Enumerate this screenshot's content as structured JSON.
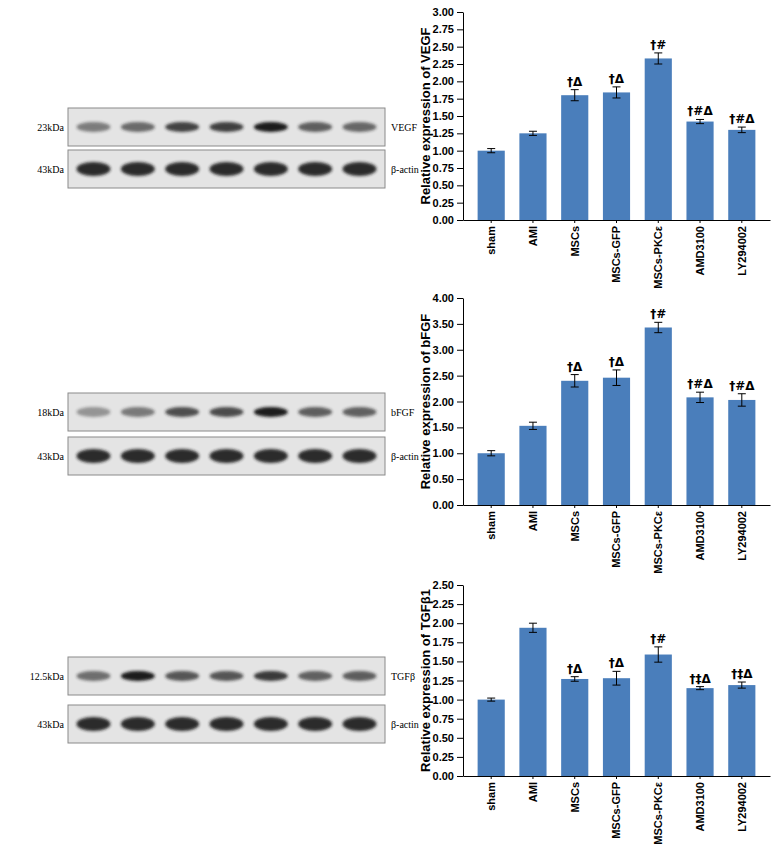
{
  "chart_data": [
    {
      "type": "bar",
      "y_label": "Relative expression of VEGF",
      "categories": [
        "sham",
        "AMI",
        "MSCs",
        "MSCs-GFP",
        "MSCs-PKCε",
        "AMD3100",
        "LY294002"
      ],
      "values": [
        1.0,
        1.25,
        1.8,
        1.84,
        2.33,
        1.42,
        1.3
      ],
      "error": [
        0.03,
        0.03,
        0.08,
        0.08,
        0.08,
        0.03,
        0.04
      ],
      "annotations": [
        null,
        null,
        "†Δ",
        "†Δ",
        "†#",
        "†#Δ",
        "†#Δ"
      ],
      "color": "#4a7ebb",
      "grid": false,
      "ylim": [
        0,
        3
      ],
      "yticks": [
        {
          "value": 0,
          "label": "0.00"
        },
        {
          "value": 0.25,
          "label": "0.25"
        },
        {
          "value": 0.5,
          "label": "0.50"
        },
        {
          "value": 0.75,
          "label": "0.75"
        },
        {
          "value": 1,
          "label": "1.00"
        },
        {
          "value": 1.25,
          "label": "1.25"
        },
        {
          "value": 1.5,
          "label": "1.50"
        },
        {
          "value": 1.75,
          "label": "1.75"
        },
        {
          "value": 2,
          "label": "2.00"
        },
        {
          "value": 2.25,
          "label": "2.25"
        },
        {
          "value": 2.5,
          "label": "2.50"
        },
        {
          "value": 2.75,
          "label": "2.75"
        },
        {
          "value": 3,
          "label": "3.00"
        }
      ]
    },
    {
      "type": "bar",
      "y_label": "Relative expression of bFGF",
      "categories": [
        "sham",
        "AMI",
        "MSCs",
        "MSCs-GFP",
        "MSCs-PKCε",
        "AMD3100",
        "LY294002"
      ],
      "values": [
        1.0,
        1.53,
        2.4,
        2.46,
        3.43,
        2.08,
        2.03
      ],
      "error": [
        0.05,
        0.07,
        0.12,
        0.15,
        0.1,
        0.1,
        0.12
      ],
      "annotations": [
        null,
        null,
        "†Δ",
        "†Δ",
        "†#",
        "†#Δ",
        "†#Δ"
      ],
      "color": "#4a7ebb",
      "grid": false,
      "ylim": [
        0,
        4
      ],
      "yticks": [
        {
          "value": 0,
          "label": "0.00"
        },
        {
          "value": 0.5,
          "label": "0.50"
        },
        {
          "value": 1,
          "label": "1.00"
        },
        {
          "value": 1.5,
          "label": "1.50"
        },
        {
          "value": 2,
          "label": "2.00"
        },
        {
          "value": 2.5,
          "label": "2.50"
        },
        {
          "value": 3,
          "label": "3.00"
        },
        {
          "value": 3.5,
          "label": "3.50"
        },
        {
          "value": 4,
          "label": "4.00"
        }
      ]
    },
    {
      "type": "bar",
      "y_label": "Relative expression of TGFβ1",
      "categories": [
        "sham",
        "AMI",
        "MSCs",
        "MSCs-GFP",
        "MSCs-PKCε",
        "AMD3100",
        "LY294002"
      ],
      "values": [
        1.0,
        1.94,
        1.27,
        1.28,
        1.59,
        1.15,
        1.19
      ],
      "error": [
        0.02,
        0.06,
        0.03,
        0.09,
        0.1,
        0.02,
        0.04
      ],
      "annotations": [
        null,
        null,
        "†Δ",
        "†Δ",
        "†#",
        "†‡Δ",
        "†‡Δ"
      ],
      "color": "#4a7ebb",
      "grid": false,
      "ylim": [
        0,
        2.5
      ],
      "yticks": [
        {
          "value": 0,
          "label": "0.00"
        },
        {
          "value": 0.25,
          "label": "0.25"
        },
        {
          "value": 0.5,
          "label": "0.50"
        },
        {
          "value": 0.75,
          "label": "0.75"
        },
        {
          "value": 1,
          "label": "1.00"
        },
        {
          "value": 1.25,
          "label": "1.25"
        },
        {
          "value": 1.5,
          "label": "1.50"
        },
        {
          "value": 1.75,
          "label": "1.75"
        },
        {
          "value": 2,
          "label": "2.00"
        },
        {
          "value": 2.25,
          "label": "2.25"
        },
        {
          "value": 2.5,
          "label": "2.50"
        }
      ]
    }
  ],
  "blots": [
    {
      "target_size": "23kDa",
      "target": "VEGF",
      "control_size": "43kDa",
      "control": "β-actin"
    },
    {
      "target_size": "18kDa",
      "target": "bFGF",
      "control_size": "43kDa",
      "control": "β-actin"
    },
    {
      "target_size": "12.5kDa",
      "target": "TGFβ",
      "control_size": "43kDa",
      "control": "β-actin"
    }
  ]
}
